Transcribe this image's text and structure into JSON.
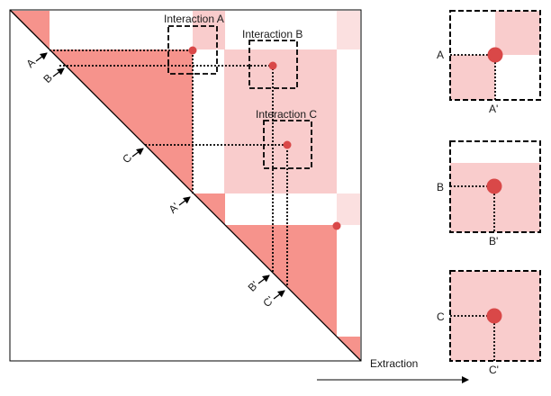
{
  "colors": {
    "light": "#f9cccc",
    "dark": "#f6938c",
    "faint": "#fbe0e0",
    "dot": "#d94848",
    "line": "#000000"
  },
  "main": {
    "interactions": [
      {
        "label": "Interaction A",
        "row": "A",
        "col": "A'"
      },
      {
        "label": "Interaction B",
        "row": "B",
        "col": "B'"
      },
      {
        "label": "Interaction C",
        "row": "C",
        "col": "C'"
      }
    ],
    "diagonal_labels": [
      "A",
      "B",
      "C",
      "A'",
      "B'",
      "C'"
    ]
  },
  "extraction": {
    "label": "Extraction",
    "panels": [
      {
        "row_label": "A",
        "col_label": "A'"
      },
      {
        "row_label": "B",
        "col_label": "B'"
      },
      {
        "row_label": "C",
        "col_label": "C'"
      }
    ]
  }
}
